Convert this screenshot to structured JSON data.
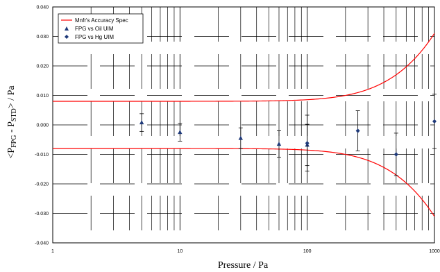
{
  "chart_data": {
    "type": "scatter",
    "xlabel": "Pressure / Pa",
    "ylabel_main": "<P",
    "ylabel_sub1": "FPG",
    "ylabel_mid": " - P",
    "ylabel_sub2": "STD",
    "ylabel_end": "> / Pa",
    "x_scale": "log",
    "xlim": [
      1,
      1000
    ],
    "ylim": [
      -0.04,
      0.04
    ],
    "x_ticks": [
      1,
      10,
      100,
      1000
    ],
    "x_tick_labels": [
      "1",
      "10",
      "100",
      "1000"
    ],
    "y_ticks": [
      -0.04,
      -0.03,
      -0.02,
      -0.01,
      0,
      0.01,
      0.02,
      0.03,
      0.04
    ],
    "y_tick_labels": [
      "-0.040",
      "-0.030",
      "-0.020",
      "-0.010",
      "0.000",
      "0.010",
      "0.020",
      "0.030",
      "0.040"
    ],
    "grid": "dashed",
    "legend_position": "top-left",
    "accuracy_spec": {
      "name": "Mnfr's Accuracy Spec",
      "color": "#ff0000",
      "base": 0.008,
      "slope_per_pa": 3e-05
    },
    "series": [
      {
        "name": "FPG vs Oil UIM",
        "marker": "triangle",
        "color": "#1f3a7a",
        "points": [
          {
            "x": 5,
            "y": 0.0008,
            "err": 0.003
          },
          {
            "x": 10,
            "y": -0.0025,
            "err": 0.003
          },
          {
            "x": 30,
            "y": -0.0045,
            "err": 0.0035
          },
          {
            "x": 60,
            "y": -0.0065,
            "err": 0.0045
          },
          {
            "x": 100,
            "y": -0.0068,
            "err": 0.007
          }
        ]
      },
      {
        "name": "FPG vs Hg UIM",
        "marker": "diamond",
        "color": "#1f3a7a",
        "points": [
          {
            "x": 100,
            "y": -0.0062,
            "err": 0.0095
          },
          {
            "x": 250,
            "y": -0.002,
            "err": 0.0068
          },
          {
            "x": 500,
            "y": -0.01,
            "err": 0.0072
          },
          {
            "x": 1000,
            "y": 0.0012,
            "err": 0.0092
          }
        ]
      }
    ]
  }
}
